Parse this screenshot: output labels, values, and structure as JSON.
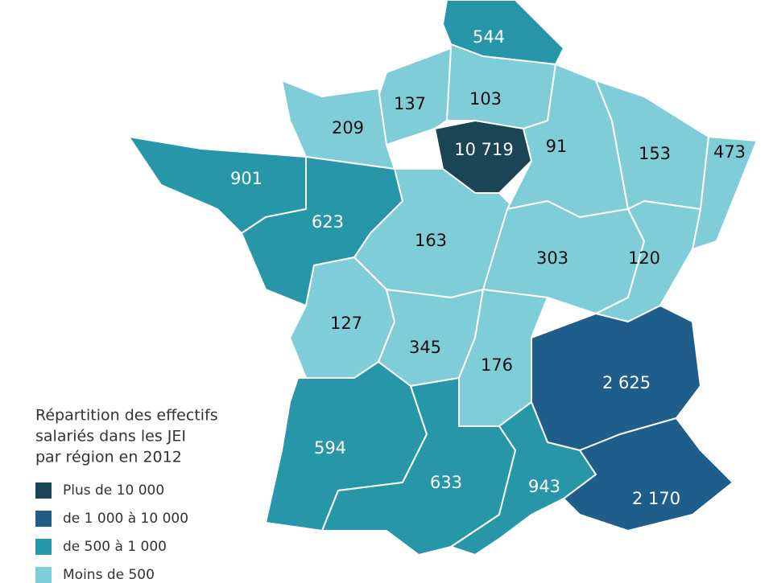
{
  "regions": [
    {
      "label": "544",
      "color": "#2796a8"
    },
    {
      "label": "103",
      "color": "#80cdda"
    },
    {
      "label": "137",
      "color": "#80cdda"
    },
    {
      "label": "209",
      "color": "#80cdda"
    },
    {
      "label": "901",
      "color": "#2796a8"
    },
    {
      "label": "623",
      "color": "#2796a8"
    },
    {
      "label": "10 719",
      "color": "#1b4556"
    },
    {
      "label": "163",
      "color": "#80cdda"
    },
    {
      "label": "91",
      "color": "#80cdda"
    },
    {
      "label": "153",
      "color": "#80cdda"
    },
    {
      "label": "473",
      "color": "#80cdda"
    },
    {
      "label": "303",
      "color": "#80cdda"
    },
    {
      "label": "120",
      "color": "#80cdda"
    },
    {
      "label": "127",
      "color": "#80cdda"
    },
    {
      "label": "345",
      "color": "#80cdda"
    },
    {
      "label": "176",
      "color": "#80cdda"
    },
    {
      "label": "2 625",
      "color": "#1f5d8a"
    },
    {
      "label": "2 170",
      "color": "#1f5d8a"
    },
    {
      "label": "594",
      "color": "#2796a8"
    },
    {
      "label": "633",
      "color": "#2796a8"
    },
    {
      "label": "943",
      "color": "#2796a8"
    }
  ],
  "legend": {
    "title": [
      "Répartition des effectifs",
      "salariés dans les  JEI",
      "par région en 2012"
    ],
    "items": [
      {
        "label": "Plus de 10 000",
        "color": "#1b4556"
      },
      {
        "label": "de 1 000 à 10 000",
        "color": "#1f5d8a"
      },
      {
        "label": "de 500 à 1 000",
        "color": "#2796a8"
      },
      {
        "label": "Moins de 500",
        "color": "#80cdda"
      }
    ]
  }
}
